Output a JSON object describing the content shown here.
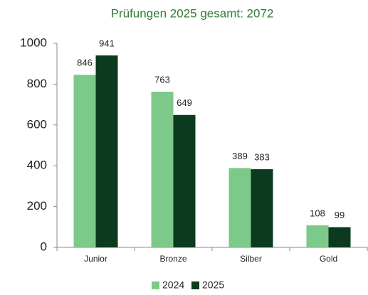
{
  "chart_data": {
    "type": "bar",
    "title": "Prüfungen 2025 gesamt: 2072",
    "categories": [
      "Junior",
      "Bronze",
      "Silber",
      "Gold"
    ],
    "series": [
      {
        "name": "2024",
        "color": "#7dc98a",
        "values": [
          846,
          763,
          389,
          108
        ]
      },
      {
        "name": "2025",
        "color": "#0b3a1e",
        "values": [
          941,
          649,
          383,
          99
        ]
      }
    ],
    "ylim": [
      0,
      1000
    ],
    "yticks": [
      0,
      200,
      400,
      600,
      800,
      1000
    ],
    "grid": false,
    "legend": "bottom"
  }
}
